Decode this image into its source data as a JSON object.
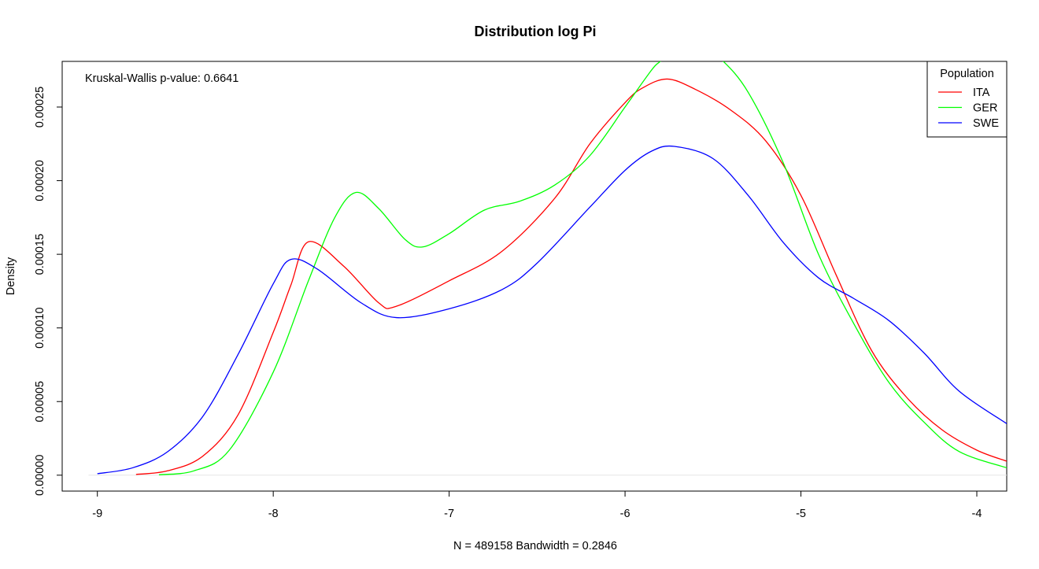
{
  "chart_data": {
    "type": "line",
    "title": "Distribution log Pi",
    "xlabel": "N = 489158   Bandwidth = 0.2846",
    "ylabel": "Density",
    "xlim": [
      -9.2,
      -3.83
    ],
    "ylim": [
      -1.08e-05,
      0.000281
    ],
    "x_ticks": [
      -9,
      -8,
      -7,
      -6,
      -5,
      -4
    ],
    "x_tick_labels": [
      "-9",
      "-8",
      "-7",
      "-6",
      "-5",
      "-4"
    ],
    "y_ticks": [
      0,
      5e-05,
      0.0001,
      0.00015,
      0.0002,
      0.00025
    ],
    "y_tick_labels": [
      "0.00000",
      "0.00005",
      "0.00010",
      "0.00015",
      "0.00020",
      "0.00025"
    ],
    "grid": false,
    "baseline_y": 0,
    "annotation": "Kruskal-Wallis p-value: 0.6641",
    "legend": {
      "title": "Population",
      "position": "top-right",
      "entries": [
        "ITA",
        "GER",
        "SWE"
      ]
    },
    "series": [
      {
        "name": "ITA",
        "color": "#ff0000",
        "points": [
          [
            -8.78,
            5e-07
          ],
          [
            -8.6,
            3e-06
          ],
          [
            -8.4,
            1.3e-05
          ],
          [
            -8.2,
            4.1e-05
          ],
          [
            -8.0,
            9.7e-05
          ],
          [
            -7.9,
            0.000129
          ],
          [
            -7.8,
            0.0001585
          ],
          [
            -7.6,
            0.000142
          ],
          [
            -7.4,
            0.000117
          ],
          [
            -7.3,
            0.0001147
          ],
          [
            -7.0,
            0.000132
          ],
          [
            -6.7,
            0.000152
          ],
          [
            -6.4,
            0.000188
          ],
          [
            -6.2,
            0.000225
          ],
          [
            -6.0,
            0.000253
          ],
          [
            -5.9,
            0.000263
          ],
          [
            -5.76,
            0.000269
          ],
          [
            -5.6,
            0.000262
          ],
          [
            -5.4,
            0.000248
          ],
          [
            -5.2,
            0.000227
          ],
          [
            -5.0,
            0.00019
          ],
          [
            -4.8,
            0.000136
          ],
          [
            -4.6,
            8.5e-05
          ],
          [
            -4.4,
            5.3e-05
          ],
          [
            -4.2,
            3.1e-05
          ],
          [
            -4.0,
            1.7e-05
          ],
          [
            -3.83,
            9.5e-06
          ]
        ]
      },
      {
        "name": "GER",
        "color": "#00ff00",
        "points": [
          [
            -8.65,
            3e-07
          ],
          [
            -8.45,
            3e-06
          ],
          [
            -8.25,
            1.7e-05
          ],
          [
            -8.0,
            7e-05
          ],
          [
            -7.8,
            0.000132
          ],
          [
            -7.65,
            0.000175
          ],
          [
            -7.53,
            0.000192
          ],
          [
            -7.4,
            0.000181
          ],
          [
            -7.25,
            0.00016
          ],
          [
            -7.15,
            0.000155
          ],
          [
            -7.0,
            0.000164
          ],
          [
            -6.8,
            0.00018
          ],
          [
            -6.6,
            0.000186
          ],
          [
            -6.4,
            0.000197
          ],
          [
            -6.2,
            0.000217
          ],
          [
            -6.0,
            0.00025
          ],
          [
            -5.85,
            0.000275
          ],
          [
            -5.8,
            0.000281
          ],
          [
            -5.7,
            0.000291
          ],
          [
            -5.55,
            0.000289
          ],
          [
            -5.45,
            0.000282
          ],
          [
            -5.3,
            0.00026
          ],
          [
            -5.1,
            0.000212
          ],
          [
            -4.9,
            0.00015
          ],
          [
            -4.7,
            0.000103
          ],
          [
            -4.5,
            6.3e-05
          ],
          [
            -4.3,
            3.6e-05
          ],
          [
            -4.1,
            1.6e-05
          ],
          [
            -3.83,
            5e-06
          ]
        ]
      },
      {
        "name": "SWE",
        "color": "#0000ff",
        "points": [
          [
            -9.0,
            1e-06
          ],
          [
            -8.8,
            5e-06
          ],
          [
            -8.6,
            1.6e-05
          ],
          [
            -8.4,
            4e-05
          ],
          [
            -8.2,
            8.2e-05
          ],
          [
            -8.0,
            0.00013
          ],
          [
            -7.9,
            0.0001465
          ],
          [
            -7.75,
            0.00014
          ],
          [
            -7.5,
            0.000117
          ],
          [
            -7.3,
            0.000107
          ],
          [
            -7.0,
            0.000113
          ],
          [
            -6.7,
            0.000126
          ],
          [
            -6.5,
            0.000144
          ],
          [
            -6.2,
            0.000182
          ],
          [
            -6.0,
            0.000207
          ],
          [
            -5.85,
            0.00022
          ],
          [
            -5.72,
            0.0002233
          ],
          [
            -5.5,
            0.000215
          ],
          [
            -5.3,
            0.00019
          ],
          [
            -5.1,
            0.000158
          ],
          [
            -4.9,
            0.000134
          ],
          [
            -4.7,
            0.00012
          ],
          [
            -4.5,
            0.000105
          ],
          [
            -4.3,
            8.3e-05
          ],
          [
            -4.1,
            5.7e-05
          ],
          [
            -3.83,
            3.5e-05
          ]
        ]
      }
    ]
  }
}
